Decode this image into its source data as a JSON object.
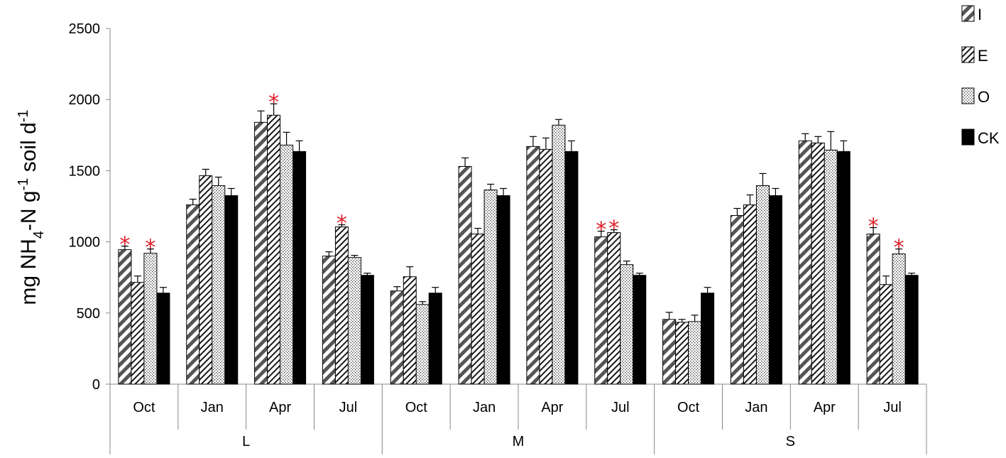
{
  "chart_data": {
    "type": "bar",
    "ylabel": {
      "prefix": "mg  NH",
      "sub": "4",
      "mid": "-N  g",
      "sup1": "-1",
      "mid2": " soil  d",
      "sup2": "-1"
    },
    "ylim": [
      0,
      2500
    ],
    "yticks": [
      "0",
      "500",
      "1000",
      "1500",
      "2000",
      "2500"
    ],
    "groups": [
      "L",
      "M",
      "S"
    ],
    "months": [
      "Oct",
      "Jan",
      "Apr",
      "Jul"
    ],
    "series": [
      {
        "name": "I",
        "pattern": "diag-bold",
        "values": [
          [
            945,
            1260,
            1840,
            900
          ],
          [
            655,
            1530,
            1670,
            1035
          ],
          [
            455,
            1185,
            1710,
            1055
          ]
        ],
        "errors": [
          [
            25,
            40,
            80,
            30
          ],
          [
            30,
            60,
            70,
            40
          ],
          [
            50,
            50,
            50,
            45
          ]
        ],
        "stars": [
          [
            true,
            false,
            false,
            false
          ],
          [
            false,
            false,
            false,
            true
          ],
          [
            false,
            false,
            false,
            true
          ]
        ]
      },
      {
        "name": "E",
        "pattern": "diag-fine",
        "values": [
          [
            715,
            1465,
            1890,
            1105
          ],
          [
            755,
            1055,
            1650,
            1065
          ],
          [
            435,
            1260,
            1695,
            700
          ]
        ],
        "errors": [
          [
            45,
            45,
            80,
            15
          ],
          [
            70,
            40,
            80,
            20
          ],
          [
            20,
            70,
            45,
            60
          ]
        ],
        "stars": [
          [
            false,
            false,
            true,
            true
          ],
          [
            false,
            false,
            false,
            true
          ],
          [
            false,
            false,
            false,
            false
          ]
        ]
      },
      {
        "name": "O",
        "pattern": "dots",
        "values": [
          [
            920,
            1395,
            1680,
            890
          ],
          [
            560,
            1365,
            1820,
            840
          ],
          [
            440,
            1395,
            1645,
            915
          ]
        ],
        "errors": [
          [
            30,
            60,
            90,
            15
          ],
          [
            20,
            40,
            40,
            25
          ],
          [
            45,
            85,
            130,
            35
          ]
        ],
        "stars": [
          [
            true,
            false,
            false,
            false
          ],
          [
            false,
            false,
            false,
            false
          ],
          [
            false,
            false,
            false,
            true
          ]
        ]
      },
      {
        "name": "CK",
        "pattern": "solid",
        "values": [
          [
            640,
            1325,
            1635,
            765
          ],
          [
            640,
            1325,
            1635,
            765
          ],
          [
            640,
            1325,
            1635,
            765
          ]
        ],
        "errors": [
          [
            40,
            50,
            75,
            15
          ],
          [
            40,
            50,
            75,
            15
          ],
          [
            40,
            50,
            75,
            15
          ]
        ],
        "stars": [
          [
            false,
            false,
            false,
            false
          ],
          [
            false,
            false,
            false,
            false
          ],
          [
            false,
            false,
            false,
            false
          ]
        ]
      }
    ],
    "star_symbol": "*",
    "star_color": "#e0202a",
    "bar_colors": {
      "dark": "#555555",
      "solid": "#000000",
      "light": "#ffffff"
    },
    "legend_position": "top-right",
    "grid": false
  }
}
